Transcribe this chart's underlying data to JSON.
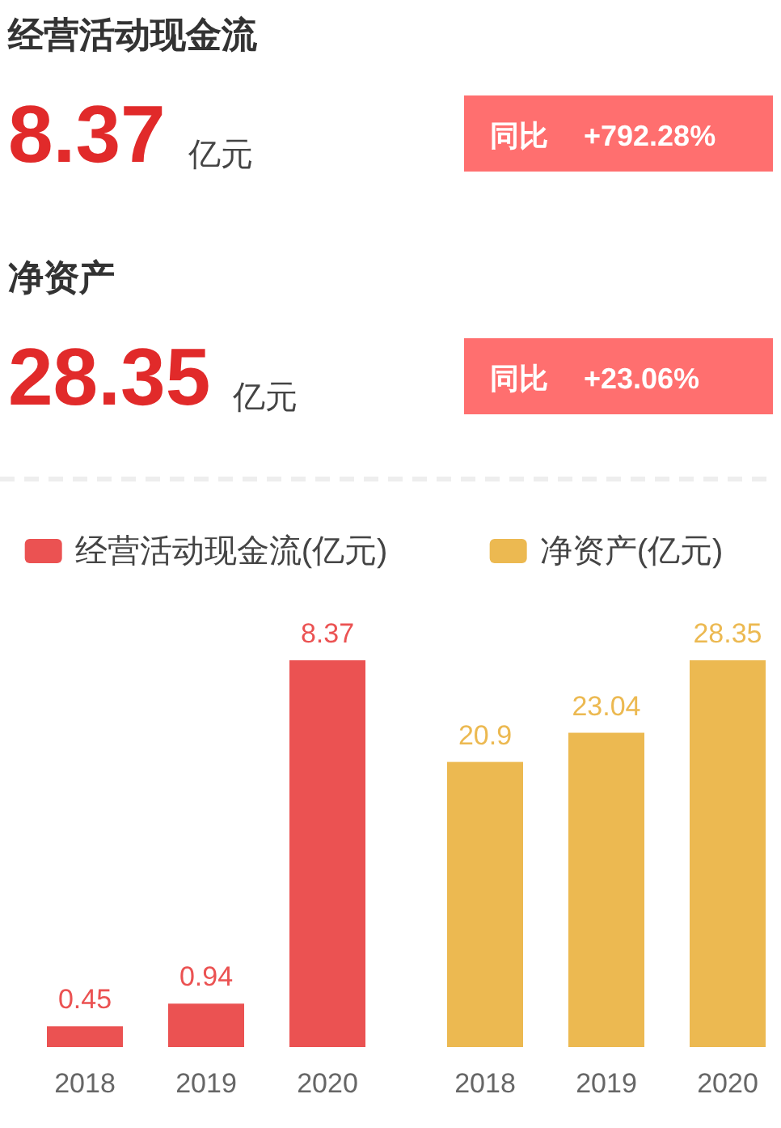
{
  "chart_data": [
    {
      "type": "other",
      "title": "经营活动现金流",
      "annotations": [
        "8.37",
        "亿元",
        "同比",
        "+792.28%"
      ]
    },
    {
      "type": "other",
      "title": "净资产",
      "annotations": [
        "28.35",
        "亿元",
        "同比",
        "+23.06%"
      ]
    },
    {
      "type": "bar",
      "categories": [
        "2018",
        "2019",
        "2020"
      ],
      "series": [
        {
          "name": "经营活动现金流(亿元)",
          "color": "#eb5252",
          "values": [
            0.45,
            0.94,
            8.37
          ]
        }
      ],
      "data_labels": true,
      "legend": "top"
    },
    {
      "type": "bar",
      "categories": [
        "2018",
        "2019",
        "2020"
      ],
      "series": [
        {
          "name": "净资产(亿元)",
          "color": "#ecb951",
          "values": [
            20.9,
            23.04,
            28.35
          ]
        }
      ],
      "data_labels": true,
      "legend": "top"
    }
  ]
}
